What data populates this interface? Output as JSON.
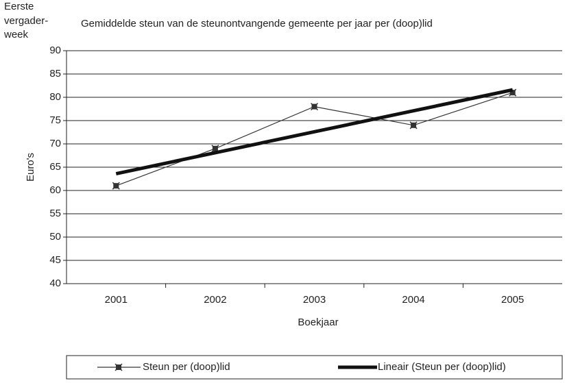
{
  "chart_data": {
    "type": "line",
    "annotation": [
      "Eerste",
      "vergader-",
      "week"
    ],
    "title": "Gemiddelde steun van de steunontvangende gemeente per jaar per (doop)lid",
    "x_label": "Boekjaar",
    "y_label": "Euro's",
    "categories": [
      "2001",
      "2002",
      "2003",
      "2004",
      "2005"
    ],
    "series": [
      {
        "name": "Steun per (doop)lid",
        "color": "#333333",
        "values": [
          61,
          69,
          78,
          74,
          81
        ]
      },
      {
        "name": "Lineair (Steun per (doop)lid)",
        "color": "#111111",
        "values": [
          63.6,
          68.1,
          72.6,
          77.1,
          81.6
        ]
      }
    ],
    "ylim": [
      40,
      90
    ],
    "yticks": [
      40,
      45,
      50,
      55,
      60,
      65,
      70,
      75,
      80,
      85,
      90
    ],
    "grid": true,
    "legend": "bottom"
  }
}
